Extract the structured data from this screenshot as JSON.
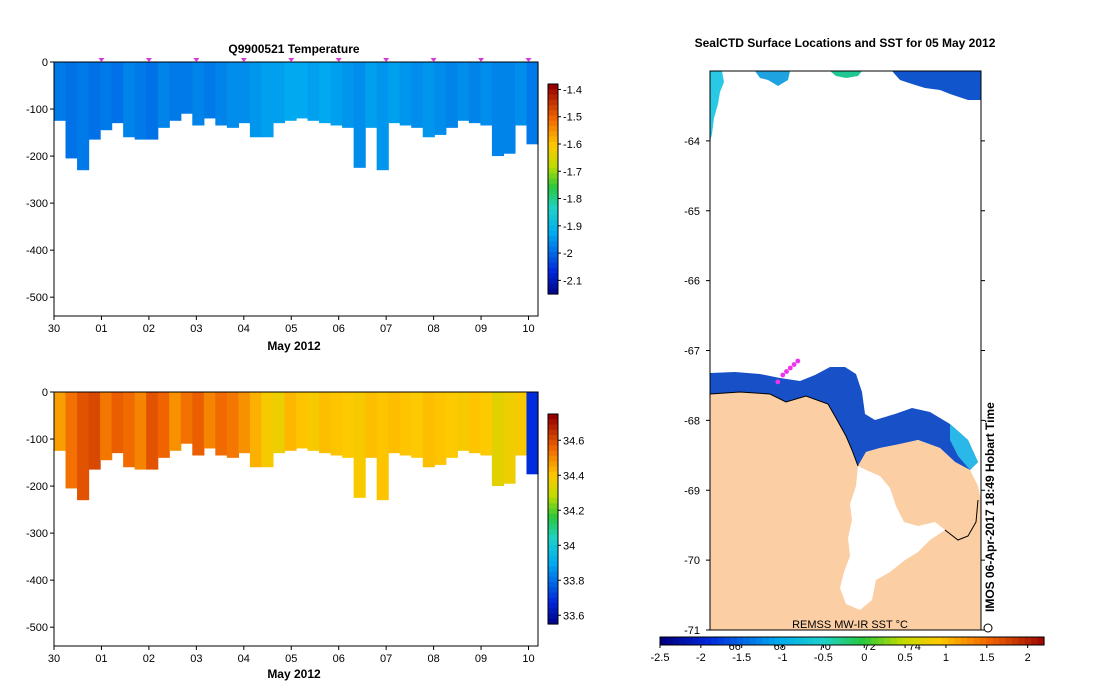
{
  "chart_data": [
    {
      "type": "heatmap",
      "title": "Q9900521  Temperature",
      "xlabel": "May 2012",
      "ylabel": "",
      "x_ticks": [
        "30",
        "01",
        "02",
        "03",
        "04",
        "05",
        "06",
        "07",
        "08",
        "09",
        "10"
      ],
      "y_ticks": [
        "0",
        "-100",
        "-200",
        "-300",
        "-400",
        "-500"
      ],
      "ylim": [
        -540,
        0
      ],
      "colorbar": {
        "ticks": [
          "-1.4",
          "-1.5",
          "-1.6",
          "-1.7",
          "-1.8",
          "-1.9",
          "-2",
          "-2.1"
        ],
        "range": [
          -2.15,
          -1.38
        ]
      },
      "profile_bottom_depths_m": [
        -125,
        -205,
        -230,
        -165,
        -145,
        -130,
        -160,
        -165,
        -165,
        -140,
        -125,
        -110,
        -135,
        -120,
        -135,
        -140,
        -130,
        -160,
        -160,
        -130,
        -125,
        -120,
        -125,
        -130,
        -135,
        -140,
        -225,
        -140,
        -230,
        -130,
        -135,
        -140,
        -160,
        -155,
        -140,
        -125,
        -130,
        -135,
        -200,
        -195,
        -135,
        -175
      ],
      "profile_temperatures_C": [
        -1.97,
        -1.98,
        -1.97,
        -1.98,
        -1.97,
        -1.98,
        -1.96,
        -1.97,
        -1.98,
        -1.96,
        -1.97,
        -1.97,
        -1.96,
        -1.97,
        -1.96,
        -1.95,
        -1.95,
        -1.94,
        -1.93,
        -1.93,
        -1.92,
        -1.92,
        -1.93,
        -1.92,
        -1.93,
        -1.94,
        -1.95,
        -1.93,
        -1.94,
        -1.93,
        -1.94,
        -1.95,
        -1.94,
        -1.95,
        -1.96,
        -1.95,
        -1.96,
        -1.95,
        -1.96,
        -1.96,
        -1.95,
        -1.97
      ],
      "surface_markers_day": [
        1,
        2,
        3,
        4,
        5,
        6,
        7,
        8,
        9,
        10
      ]
    },
    {
      "type": "heatmap",
      "title": "",
      "xlabel": "May 2012",
      "ylabel": "",
      "x_ticks": [
        "30",
        "01",
        "02",
        "03",
        "04",
        "05",
        "06",
        "07",
        "08",
        "09",
        "10"
      ],
      "y_ticks": [
        "0",
        "-100",
        "-200",
        "-300",
        "-400",
        "-500"
      ],
      "ylim": [
        -540,
        0
      ],
      "colorbar": {
        "ticks": [
          "34.6",
          "34.4",
          "34.2",
          "34",
          "33.8",
          "33.6"
        ],
        "range": [
          33.55,
          34.75
        ]
      },
      "profile_bottom_depths_m": [
        -125,
        -205,
        -230,
        -165,
        -145,
        -130,
        -160,
        -165,
        -165,
        -140,
        -125,
        -110,
        -135,
        -120,
        -135,
        -140,
        -130,
        -160,
        -160,
        -130,
        -125,
        -120,
        -125,
        -130,
        -135,
        -140,
        -225,
        -140,
        -230,
        -130,
        -135,
        -140,
        -160,
        -155,
        -140,
        -125,
        -130,
        -135,
        -200,
        -195,
        -135,
        -175
      ],
      "profile_salinity_psu": [
        34.48,
        34.55,
        34.6,
        34.62,
        34.54,
        34.58,
        34.56,
        34.52,
        34.6,
        34.57,
        34.5,
        34.55,
        34.58,
        34.52,
        34.56,
        34.54,
        34.5,
        34.45,
        34.4,
        34.38,
        34.44,
        34.42,
        34.4,
        34.43,
        34.42,
        34.41,
        34.4,
        34.43,
        34.42,
        34.43,
        34.42,
        34.41,
        34.43,
        34.42,
        34.41,
        34.4,
        34.42,
        34.41,
        34.36,
        34.38,
        34.4,
        33.7
      ]
    },
    {
      "type": "heatmap",
      "title": "SealCTD Surface Locations and SST for 05 May 2012",
      "y_ticks": [
        "-64",
        "-65",
        "-66",
        "-67",
        "-68",
        "-69",
        "-70",
        "-71"
      ],
      "x_ticks_faint": [
        "66°",
        "68°",
        "70°",
        "72°",
        "74°"
      ],
      "colorbar": {
        "label": "REMSS MW-IR SST °C",
        "ticks": [
          "-2.5",
          "-2",
          "-1.5",
          "-1",
          "-0.5",
          "0",
          "0.5",
          "1",
          "1.5",
          "2"
        ],
        "range": [
          -2.5,
          2.2
        ]
      },
      "side_label": "IMOS 06-Apr-2017 18:49 Hobart Time",
      "legend_position": "bottom",
      "track_points": [
        [
          67.5,
          -67.45
        ],
        [
          67.7,
          -67.35
        ],
        [
          67.85,
          -67.3
        ],
        [
          68.0,
          -67.25
        ],
        [
          68.15,
          -67.2
        ],
        [
          68.3,
          -67.15
        ]
      ]
    }
  ]
}
